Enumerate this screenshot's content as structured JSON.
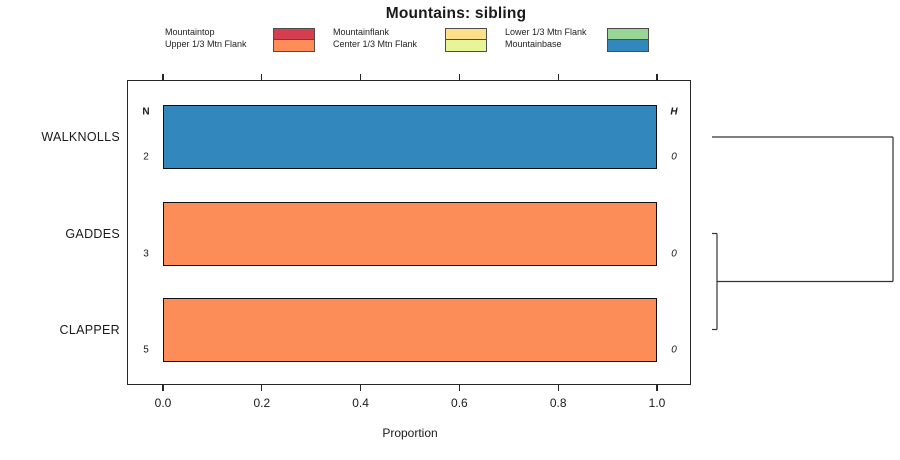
{
  "legend": {
    "entries": [
      {
        "label": "Mountaintop",
        "color": "#D53E4F"
      },
      {
        "label": "Upper 1/3 Mtn Flank",
        "color": "#FC8D59"
      },
      {
        "label": "Mountainflank",
        "color": "#FEE08B"
      },
      {
        "label": "Center 1/3 Mtn Flank",
        "color": "#E6F598"
      },
      {
        "label": "Lower 1/3 Mtn Flank",
        "color": "#99D594"
      },
      {
        "label": "Mountainbase",
        "color": "#3288BD"
      }
    ],
    "columns": [
      [
        0,
        1
      ],
      [
        2,
        3
      ],
      [
        4,
        5
      ]
    ]
  },
  "chart_data": {
    "type": "bar",
    "orientation": "horizontal",
    "title": "Mountains: sibling",
    "xlabel": "Proportion",
    "xlim": [
      0,
      1.0
    ],
    "x_ticks": {
      "values": [
        0,
        0.2,
        0.4,
        0.6,
        0.8,
        1.0
      ],
      "labels": [
        "0.0",
        "0.2",
        "0.4",
        "0.6",
        "0.8",
        "1.0"
      ]
    },
    "grid": false,
    "legend_position": "top",
    "n_column_header": "N",
    "h_column_header": "H",
    "rows": [
      {
        "label": "WALKNOLLS",
        "n": "2",
        "h": "0",
        "segments": [
          {
            "category": "Mountainbase",
            "value": 1.0,
            "color": "#3288BD"
          }
        ]
      },
      {
        "label": "GADDES",
        "n": "3",
        "h": "0",
        "segments": [
          {
            "category": "Upper 1/3 Mtn Flank",
            "value": 1.0,
            "color": "#FC8D59"
          }
        ]
      },
      {
        "label": "CLAPPER",
        "n": "5",
        "h": "0",
        "segments": [
          {
            "category": "Upper 1/3 Mtn Flank",
            "value": 1.0,
            "color": "#FC8D59"
          }
        ]
      }
    ],
    "dendrogram": {
      "position": "right",
      "leaves": [
        "WALKNOLLS",
        "GADDES",
        "CLAPPER"
      ],
      "merges": [
        {
          "a": {
            "type": "leaf",
            "index": 1
          },
          "b": {
            "type": "leaf",
            "index": 2
          },
          "height": 0
        },
        {
          "a": {
            "type": "leaf",
            "index": 0
          },
          "b": {
            "type": "merge",
            "index": 0
          },
          "height": 1
        }
      ]
    }
  }
}
